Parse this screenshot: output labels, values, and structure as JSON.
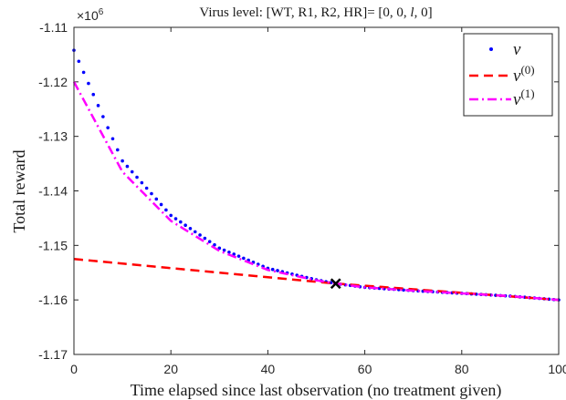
{
  "chart_data": {
    "type": "line",
    "title": "Virus level: [WT, R1, R2, HR]= [0, 0, l, 0]",
    "title_parts": {
      "prefix": "Virus level: [WT, R1, R2, HR]= [0, 0, ",
      "italic": "l",
      "suffix": ", 0]"
    },
    "xlabel": "Time elapsed since last observation (no treatment given)",
    "ylabel": "Total reward",
    "y_multiplier": "×10",
    "y_multiplier_exp": "6",
    "xlim": [
      0,
      100
    ],
    "ylim": [
      -1.17,
      -1.11
    ],
    "x_ticks": [
      0,
      20,
      40,
      60,
      80,
      100
    ],
    "x_tick_labels": [
      "0",
      "20",
      "40",
      "60",
      "80",
      "100"
    ],
    "y_ticks": [
      -1.11,
      -1.12,
      -1.13,
      -1.14,
      -1.15,
      -1.16,
      -1.17
    ],
    "y_tick_labels": [
      "-1.11",
      "-1.12",
      "-1.13",
      "-1.14",
      "-1.15",
      "-1.16",
      "-1.17"
    ],
    "grid": false,
    "legend_position": "top-right",
    "series": [
      {
        "name": "v",
        "legend_sup": "",
        "style": "dotted-markers",
        "color": "#0000ff",
        "x": [
          0,
          10,
          20,
          30,
          40,
          50,
          54,
          60,
          70,
          80,
          90,
          100
        ],
        "y": [
          -1.1142,
          -1.1345,
          -1.1445,
          -1.1505,
          -1.1542,
          -1.1563,
          -1.157,
          -1.1577,
          -1.1583,
          -1.1588,
          -1.1593,
          -1.16
        ]
      },
      {
        "name": "v",
        "legend_sup": "(0)",
        "style": "dashed",
        "color": "#ff0000",
        "x": [
          0,
          54,
          100
        ],
        "y": [
          -1.1525,
          -1.157,
          -1.16
        ]
      },
      {
        "name": "v",
        "legend_sup": "(1)",
        "style": "dash-dot",
        "color": "#ff00ff",
        "x": [
          0,
          10,
          20,
          30,
          40,
          50,
          54,
          60,
          70,
          80,
          90,
          100
        ],
        "y": [
          -1.12,
          -1.1365,
          -1.1455,
          -1.151,
          -1.1545,
          -1.1564,
          -1.157,
          -1.1577,
          -1.1583,
          -1.1588,
          -1.1593,
          -1.16
        ]
      }
    ],
    "marker": {
      "symbol": "x",
      "x": 54,
      "y": -1.157,
      "color": "#000000"
    }
  }
}
